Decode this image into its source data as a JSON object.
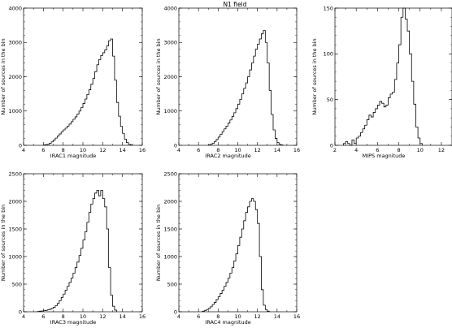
{
  "figure": {
    "title": "N1 field"
  },
  "colors": {
    "line": "#000000",
    "background": "#ffffff"
  },
  "chart_data": [
    {
      "id": "irac1",
      "type": "step-histogram",
      "xlabel": "IRAC1 magnitude",
      "ylabel": "Number of sources in the bin",
      "xlim": [
        4,
        16
      ],
      "ylim": [
        0,
        4000
      ],
      "xticks": [
        4,
        6,
        8,
        10,
        12,
        14,
        16
      ],
      "yticks": [
        0,
        1000,
        2000,
        3000,
        4000
      ],
      "bin_width": 0.2,
      "x": [
        6.0,
        6.2,
        6.4,
        6.6,
        6.8,
        7.0,
        7.2,
        7.4,
        7.6,
        7.8,
        8.0,
        8.2,
        8.4,
        8.6,
        8.8,
        9.0,
        9.2,
        9.4,
        9.6,
        9.8,
        10.0,
        10.2,
        10.4,
        10.6,
        10.8,
        11.0,
        11.2,
        11.4,
        11.6,
        11.8,
        12.0,
        12.2,
        12.4,
        12.6,
        12.8,
        13.0,
        13.2,
        13.4,
        13.6,
        13.8,
        14.0,
        14.2,
        14.4,
        14.6,
        14.8
      ],
      "values": [
        10,
        20,
        30,
        60,
        100,
        150,
        210,
        270,
        330,
        390,
        450,
        500,
        560,
        620,
        690,
        760,
        830,
        910,
        1000,
        1100,
        1220,
        1350,
        1480,
        1620,
        1780,
        1950,
        2150,
        2350,
        2500,
        2620,
        2700,
        2780,
        2900,
        3050,
        3100,
        2600,
        1900,
        1250,
        850,
        550,
        350,
        180,
        80,
        30,
        10
      ]
    },
    {
      "id": "irac2",
      "type": "step-histogram",
      "xlabel": "IRAC2 magnitude",
      "ylabel": "Number of sources in the bin",
      "xlim": [
        4,
        16
      ],
      "ylim": [
        0,
        4000
      ],
      "xticks": [
        4,
        6,
        8,
        10,
        12,
        14,
        16
      ],
      "yticks": [
        0,
        1000,
        2000,
        3000,
        4000
      ],
      "bin_width": 0.2,
      "x": [
        7.0,
        7.2,
        7.4,
        7.6,
        7.8,
        8.0,
        8.2,
        8.4,
        8.6,
        8.8,
        9.0,
        9.2,
        9.4,
        9.6,
        9.8,
        10.0,
        10.2,
        10.4,
        10.6,
        10.8,
        11.0,
        11.2,
        11.4,
        11.6,
        11.8,
        12.0,
        12.2,
        12.4,
        12.6,
        12.8,
        13.0,
        13.2,
        13.4,
        13.6,
        13.8,
        14.0,
        14.2,
        14.4
      ],
      "values": [
        10,
        30,
        60,
        110,
        170,
        240,
        320,
        400,
        480,
        560,
        650,
        740,
        840,
        950,
        1070,
        1200,
        1340,
        1500,
        1660,
        1820,
        2000,
        2200,
        2400,
        2600,
        2800,
        2950,
        3100,
        3250,
        3350,
        3000,
        2400,
        1600,
        900,
        450,
        200,
        80,
        30,
        10
      ]
    },
    {
      "id": "mips",
      "type": "step-histogram",
      "xlabel": "MIPS magnitude",
      "ylabel": "Number of sources in the bin",
      "xlim": [
        2,
        13
      ],
      "ylim": [
        0,
        150
      ],
      "xticks": [
        2,
        4,
        6,
        8,
        10,
        12
      ],
      "yticks": [
        0,
        50,
        100,
        150
      ],
      "bin_width": 0.2,
      "x": [
        2.8,
        3.0,
        3.2,
        3.4,
        3.6,
        3.8,
        4.0,
        4.2,
        4.4,
        4.6,
        4.8,
        5.0,
        5.2,
        5.4,
        5.6,
        5.8,
        6.0,
        6.2,
        6.4,
        6.6,
        6.8,
        7.0,
        7.2,
        7.4,
        7.6,
        7.8,
        8.0,
        8.2,
        8.4,
        8.6,
        8.8,
        9.0,
        9.2,
        9.4,
        9.6,
        9.8,
        10.0
      ],
      "values": [
        2,
        4,
        2,
        0,
        6,
        2,
        8,
        10,
        14,
        18,
        22,
        28,
        33,
        31,
        36,
        40,
        44,
        48,
        46,
        42,
        44,
        52,
        56,
        58,
        72,
        90,
        110,
        140,
        150,
        138,
        125,
        100,
        70,
        45,
        20,
        8,
        2
      ]
    },
    {
      "id": "irac3",
      "type": "step-histogram",
      "xlabel": "IRAC3 magnitude",
      "ylabel": "Number of sources in the bin",
      "xlim": [
        4,
        16
      ],
      "ylim": [
        0,
        2500
      ],
      "xticks": [
        4,
        6,
        8,
        10,
        12,
        14,
        16
      ],
      "yticks": [
        0,
        500,
        1000,
        1500,
        2000,
        2500
      ],
      "bin_width": 0.2,
      "x": [
        5.4,
        5.6,
        5.8,
        6.0,
        6.2,
        6.4,
        6.6,
        6.8,
        7.0,
        7.2,
        7.4,
        7.6,
        7.8,
        8.0,
        8.2,
        8.4,
        8.6,
        8.8,
        9.0,
        9.2,
        9.4,
        9.6,
        9.8,
        10.0,
        10.2,
        10.4,
        10.6,
        10.8,
        11.0,
        11.2,
        11.4,
        11.6,
        11.8,
        12.0,
        12.2,
        12.4,
        12.6,
        12.8,
        13.0,
        13.2
      ],
      "values": [
        5,
        10,
        15,
        20,
        25,
        35,
        45,
        60,
        80,
        110,
        150,
        200,
        260,
        320,
        390,
        460,
        530,
        610,
        700,
        800,
        900,
        1020,
        1150,
        1300,
        1450,
        1620,
        1800,
        1950,
        2050,
        2150,
        2200,
        2100,
        2200,
        2050,
        1900,
        1500,
        800,
        300,
        100,
        30
      ]
    },
    {
      "id": "irac4",
      "type": "step-histogram",
      "xlabel": "IRAC4 magnitude",
      "ylabel": "Number of sources in the bin",
      "xlim": [
        4,
        16
      ],
      "ylim": [
        0,
        2500
      ],
      "xticks": [
        4,
        6,
        8,
        10,
        12,
        14,
        16
      ],
      "yticks": [
        0,
        500,
        1000,
        1500,
        2000,
        2500
      ],
      "bin_width": 0.2,
      "x": [
        6.4,
        6.6,
        6.8,
        7.0,
        7.2,
        7.4,
        7.6,
        7.8,
        8.0,
        8.2,
        8.4,
        8.6,
        8.8,
        9.0,
        9.2,
        9.4,
        9.6,
        9.8,
        10.0,
        10.2,
        10.4,
        10.6,
        10.8,
        11.0,
        11.2,
        11.4,
        11.6,
        11.8,
        12.0,
        12.2,
        12.4,
        12.6,
        12.8,
        13.0
      ],
      "values": [
        10,
        20,
        40,
        60,
        90,
        130,
        170,
        220,
        270,
        330,
        390,
        460,
        530,
        610,
        700,
        800,
        920,
        1050,
        1200,
        1350,
        1500,
        1650,
        1800,
        1900,
        2000,
        2050,
        2000,
        1850,
        1600,
        1000,
        400,
        120,
        40,
        10
      ]
    }
  ]
}
